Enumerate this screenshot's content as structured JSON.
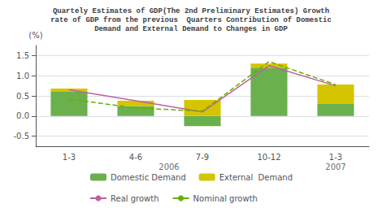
{
  "chart_data": {
    "type": "bar",
    "title": "Quartely Estimates of GDP(The 2nd Preliminary Estimates) Growth\nrate of GDP from the previous  Quarters Contribution of Domestic\nDemand and External Demand to Changes in GDP",
    "ylabel": "(%)",
    "categories": [
      "1-3",
      "4-6",
      "7-9",
      "10-12",
      "1-3"
    ],
    "annotations": [
      "2006",
      "2007"
    ],
    "series": [
      {
        "name": "Domestic Demand",
        "color": "#6ab04c",
        "values": [
          0.6,
          0.25,
          -0.25,
          1.2,
          0.3
        ]
      },
      {
        "name": "External  Demand",
        "color": "#d4c500",
        "values": [
          0.08,
          0.13,
          0.4,
          0.1,
          0.48
        ]
      },
      {
        "name": "Real growth",
        "type": "line",
        "color": "#c060a0",
        "line_style": "solid",
        "values": [
          0.65,
          0.38,
          0.1,
          1.25,
          0.75
        ]
      },
      {
        "name": "Nominal growth",
        "type": "line",
        "color": "#6ab000",
        "line_style": "dashed",
        "values": [
          0.42,
          0.2,
          0.12,
          1.35,
          0.78
        ]
      }
    ],
    "stacked": true,
    "ylim": [
      -0.75,
      1.75
    ],
    "yticks": [
      -0.5,
      {
        "value": 0,
        "label": "0.0"
      },
      0.5,
      {
        "value": 1,
        "label": "1.0"
      },
      1.5
    ],
    "grid": true,
    "legend": "bottom"
  }
}
